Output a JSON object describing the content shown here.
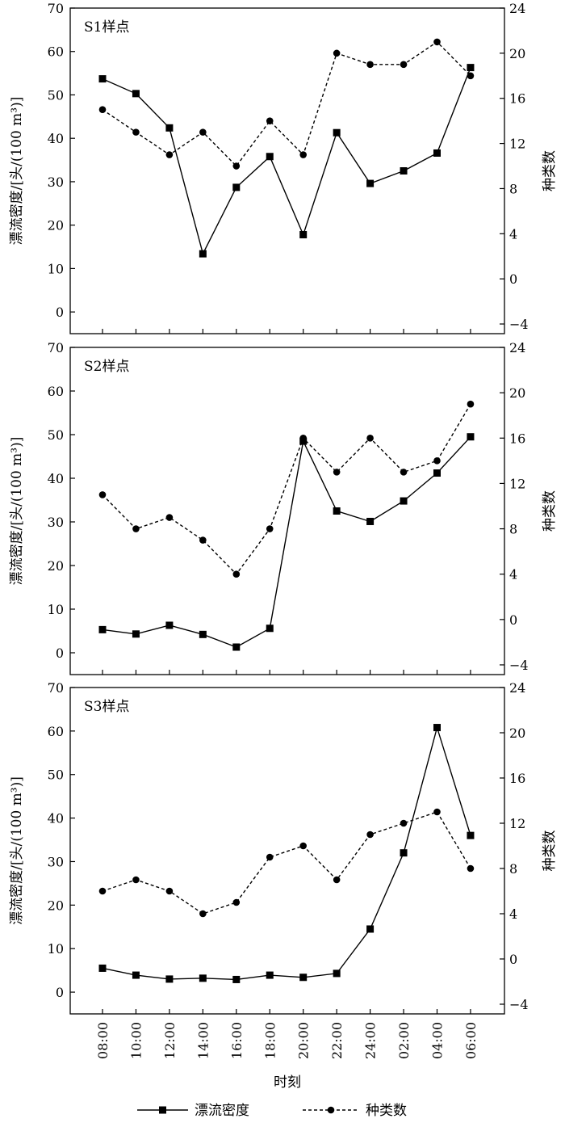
{
  "chart_data": [
    {
      "type": "line",
      "panel_label": "S1样点",
      "ylabel_left": "漂流密度/[头/(100 m³)]",
      "ylabel_right": "种类数",
      "xlabel": "时刻",
      "categories": [
        "08:00",
        "10:00",
        "12:00",
        "14:00",
        "16:00",
        "18:00",
        "20:00",
        "22:00",
        "24:00",
        "02:00",
        "04:00",
        "06:00"
      ],
      "y_left_ticks": [
        0,
        10,
        20,
        30,
        40,
        50,
        60,
        70
      ],
      "y_right_ticks": [
        -4,
        0,
        4,
        8,
        12,
        16,
        20,
        24
      ],
      "ylim_left": [
        -5,
        70
      ],
      "ylim_right": [
        -4.857,
        24
      ],
      "series": [
        {
          "name": "漂流密度",
          "axis": "left",
          "style": "solid",
          "marker": "square",
          "values": [
            53.7,
            50.3,
            42.4,
            13.4,
            28.7,
            35.8,
            17.8,
            41.3,
            29.6,
            32.5,
            36.6,
            56.3
          ]
        },
        {
          "name": "种类数",
          "axis": "right",
          "style": "dashed",
          "marker": "circle",
          "values": [
            15,
            13,
            11,
            13,
            10,
            14,
            11,
            20,
            19,
            19,
            21,
            18
          ]
        }
      ]
    },
    {
      "type": "line",
      "panel_label": "S2样点",
      "ylabel_left": "漂流密度/[头/(100 m³)]",
      "ylabel_right": "种类数",
      "xlabel": "时刻",
      "categories": [
        "08:00",
        "10:00",
        "12:00",
        "14:00",
        "16:00",
        "18:00",
        "20:00",
        "22:00",
        "24:00",
        "02:00",
        "04:00",
        "06:00"
      ],
      "y_left_ticks": [
        0,
        10,
        20,
        30,
        40,
        50,
        60,
        70
      ],
      "y_right_ticks": [
        -4,
        0,
        4,
        8,
        12,
        16,
        20,
        24
      ],
      "ylim_left": [
        -5,
        70
      ],
      "ylim_right": [
        -4.857,
        24
      ],
      "series": [
        {
          "name": "漂流密度",
          "axis": "left",
          "style": "solid",
          "marker": "square",
          "values": [
            5.3,
            4.3,
            6.3,
            4.2,
            1.3,
            5.6,
            48.5,
            32.5,
            30.1,
            34.8,
            41.2,
            49.5
          ]
        },
        {
          "name": "种类数",
          "axis": "right",
          "style": "dashed",
          "marker": "circle",
          "values": [
            11,
            8,
            9,
            7,
            4,
            8,
            16,
            13,
            16,
            13,
            14,
            19
          ]
        }
      ]
    },
    {
      "type": "line",
      "panel_label": "S3样点",
      "ylabel_left": "漂流密度/[头/(100 m³)]",
      "ylabel_right": "种类数",
      "xlabel": "时刻",
      "categories": [
        "08:00",
        "10:00",
        "12:00",
        "14:00",
        "16:00",
        "18:00",
        "20:00",
        "22:00",
        "24:00",
        "02:00",
        "04:00",
        "06:00"
      ],
      "y_left_ticks": [
        0,
        10,
        20,
        30,
        40,
        50,
        60,
        70
      ],
      "y_right_ticks": [
        -4,
        0,
        4,
        8,
        12,
        16,
        20,
        24
      ],
      "ylim_left": [
        -5,
        70
      ],
      "ylim_right": [
        -4.857,
        24
      ],
      "series": [
        {
          "name": "漂流密度",
          "axis": "left",
          "style": "solid",
          "marker": "square",
          "values": [
            5.5,
            3.9,
            3.0,
            3.2,
            2.9,
            3.9,
            3.4,
            4.3,
            14.5,
            32.0,
            60.8,
            36.0
          ]
        },
        {
          "name": "种类数",
          "axis": "right",
          "style": "dashed",
          "marker": "circle",
          "values": [
            6,
            7,
            6,
            4,
            5,
            9,
            10,
            7,
            11,
            12,
            13,
            8
          ]
        }
      ]
    }
  ],
  "legend": {
    "items": [
      {
        "label": "漂流密度",
        "style": "solid",
        "marker": "square"
      },
      {
        "label": "种类数",
        "style": "dashed",
        "marker": "circle"
      }
    ]
  }
}
